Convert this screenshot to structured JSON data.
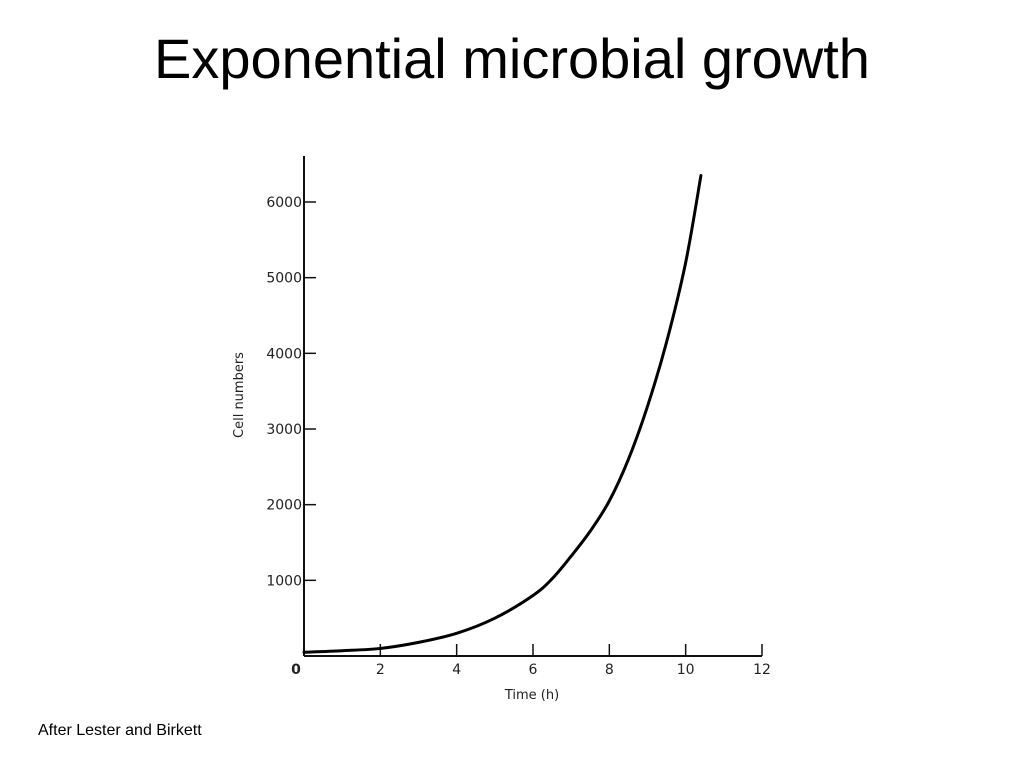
{
  "slide": {
    "title": "Exponential microbial growth",
    "credit": "After Lester and Birkett"
  },
  "chart_data": {
    "type": "line",
    "title": "Exponential microbial growth",
    "xlabel": "Time (h)",
    "ylabel": "Cell numbers",
    "xlim": [
      0,
      12
    ],
    "ylim": [
      0,
      6600
    ],
    "x_ticks": [
      0,
      2,
      4,
      6,
      8,
      10,
      12
    ],
    "y_ticks": [
      1000,
      2000,
      3000,
      4000,
      5000,
      6000
    ],
    "grid": false,
    "legend": "none",
    "line_color": "#000000",
    "series": [
      {
        "name": "",
        "x": [
          0,
          1,
          2,
          3,
          4,
          5,
          6,
          6.5,
          7,
          7.5,
          8,
          8.5,
          9,
          9.5,
          10,
          10.4
        ],
        "values": [
          50,
          70,
          100,
          180,
          300,
          500,
          800,
          1020,
          1320,
          1650,
          2050,
          2600,
          3300,
          4150,
          5200,
          6350
        ]
      }
    ]
  }
}
